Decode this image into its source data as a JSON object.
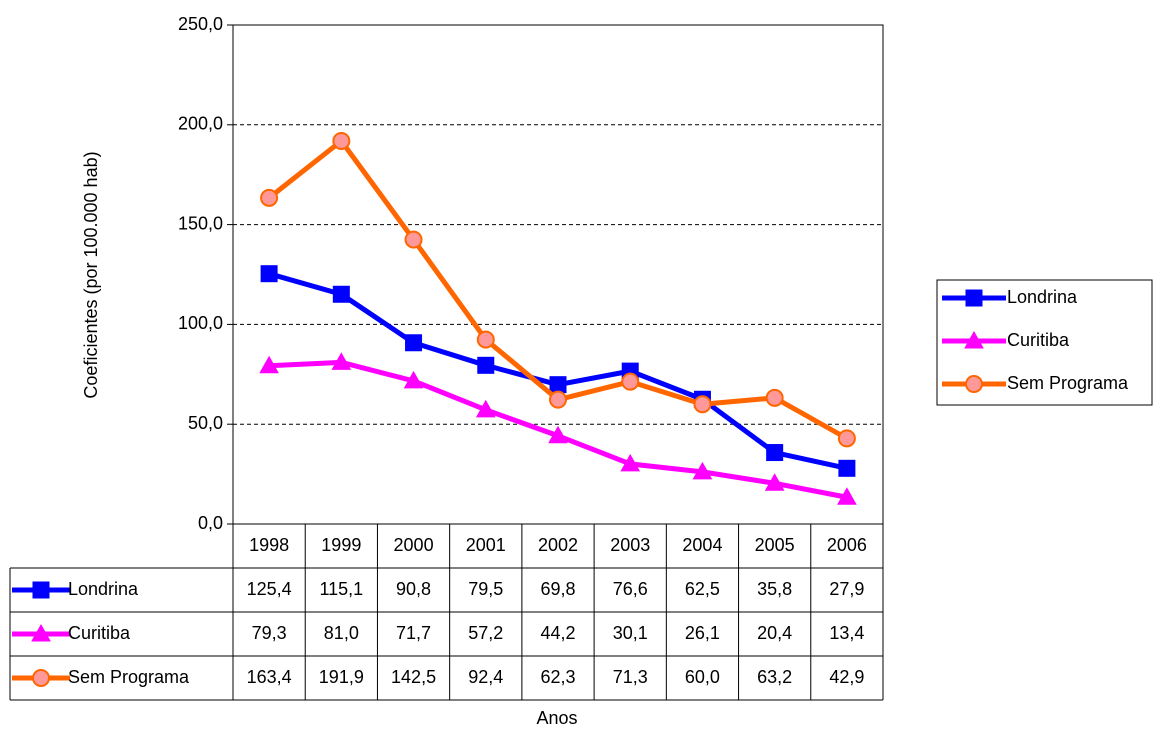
{
  "chart_data": {
    "type": "line",
    "y_label": "Coeficientes (por 100.000 hab)",
    "x_label": "Anos",
    "categories": [
      "1998",
      "1999",
      "2000",
      "2001",
      "2002",
      "2003",
      "2004",
      "2005",
      "2006"
    ],
    "series": [
      {
        "name": "Londrina",
        "color": "#0000ff",
        "marker": "square",
        "marker_fill": "#0000ff",
        "values": [
          125.4,
          115.1,
          90.8,
          79.5,
          69.8,
          76.6,
          62.5,
          35.8,
          27.9
        ],
        "value_labels": [
          "125,4",
          "115,1",
          "90,8",
          "79,5",
          "69,8",
          "76,6",
          "62,5",
          "35,8",
          "27,9"
        ]
      },
      {
        "name": "Curitiba",
        "color": "#ff00ff",
        "marker": "triangle",
        "marker_fill": "#ff00ff",
        "values": [
          79.3,
          81.0,
          71.7,
          57.2,
          44.2,
          30.1,
          26.1,
          20.4,
          13.4
        ],
        "value_labels": [
          "79,3",
          "81,0",
          "71,7",
          "57,2",
          "44,2",
          "30,1",
          "26,1",
          "20,4",
          "13,4"
        ]
      },
      {
        "name": "Sem Programa",
        "color": "#ff6600",
        "marker": "circle",
        "marker_fill": "#ff9999",
        "values": [
          163.4,
          191.9,
          142.5,
          92.4,
          62.3,
          71.3,
          60.0,
          63.2,
          42.9
        ],
        "value_labels": [
          "163,4",
          "191,9",
          "142,5",
          "92,4",
          "62,3",
          "71,3",
          "60,0",
          "63,2",
          "42,9"
        ]
      }
    ],
    "ylim": [
      0,
      250
    ],
    "yticks": [
      {
        "value": 0,
        "label": "0,0"
      },
      {
        "value": 50,
        "label": "50,0"
      },
      {
        "value": 100,
        "label": "100,0"
      },
      {
        "value": 150,
        "label": "150,0"
      },
      {
        "value": 200,
        "label": "200,0"
      },
      {
        "value": 250,
        "label": "250,0"
      }
    ],
    "grid": true,
    "legend": "right"
  }
}
